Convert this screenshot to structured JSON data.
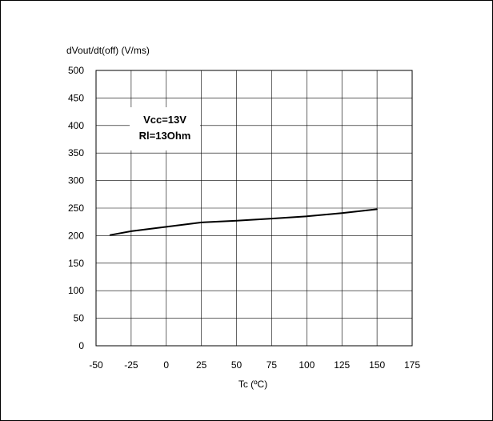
{
  "chart_data": {
    "type": "line",
    "ylabel": "dVout/dt(off) (V/ms)",
    "xlabel": "Tc (ºC)",
    "xlim": [
      -50,
      175
    ],
    "ylim": [
      0,
      500
    ],
    "x_ticks": [
      -50,
      -25,
      0,
      25,
      50,
      75,
      100,
      125,
      150,
      175
    ],
    "y_ticks": [
      0,
      50,
      100,
      150,
      200,
      250,
      300,
      350,
      400,
      450,
      500
    ],
    "grid": true,
    "annotation": [
      "Vcc=13V",
      "Rl=13Ohm"
    ],
    "series": [
      {
        "x": [
          -40,
          -25,
          0,
          25,
          50,
          75,
          100,
          125,
          150
        ],
        "y": [
          201,
          208,
          216,
          224,
          227,
          231,
          235,
          241,
          248
        ]
      }
    ]
  }
}
